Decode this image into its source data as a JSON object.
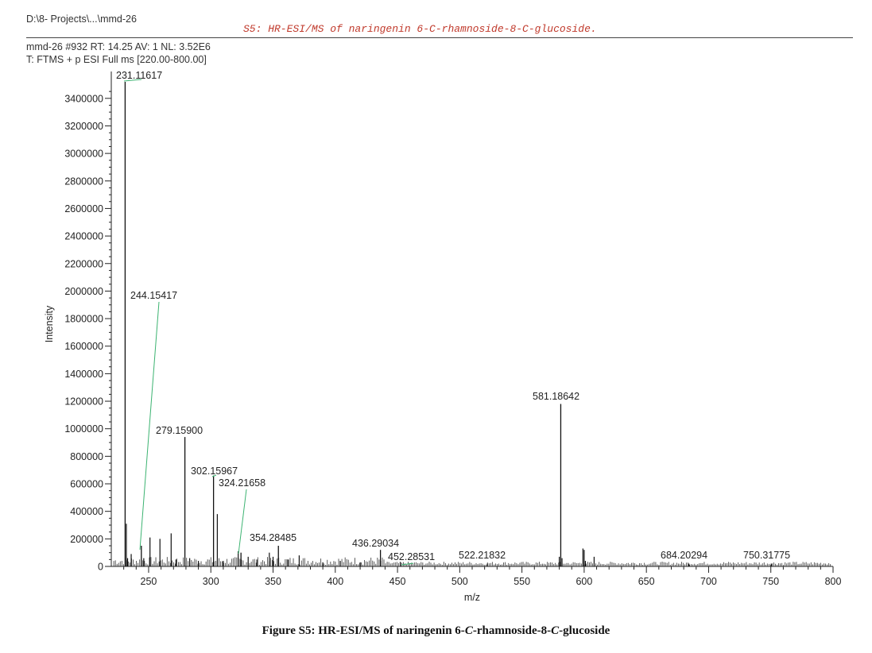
{
  "header": {
    "path": "D:\\8- Projects\\...\\mmd-26",
    "scan_info": "mmd-26 #932  RT: 14.25  AV: 1  NL: 3.52E6",
    "filter_info": "T: FTMS + p ESI Full ms [220.00-800.00]"
  },
  "chart_data": {
    "type": "bar",
    "title": "S5: HR-ESI/MS of naringenin 6-C-rhamnoside-8-C-glucoside.",
    "xlabel": "m/z",
    "ylabel": "Intensity",
    "xlim": [
      220,
      800
    ],
    "ylim": [
      0,
      3520000
    ],
    "x_ticks": [
      250,
      300,
      350,
      400,
      450,
      500,
      550,
      600,
      650,
      700,
      750,
      800
    ],
    "y_ticks": [
      0,
      200000,
      400000,
      600000,
      800000,
      1000000,
      1200000,
      1400000,
      1600000,
      1800000,
      2000000,
      2200000,
      2400000,
      2600000,
      2800000,
      3000000,
      3200000,
      3400000
    ],
    "labeled_peaks": [
      {
        "mz": 231.11617,
        "intensity": 3520000,
        "label": "231.11617"
      },
      {
        "mz": 244.15417,
        "intensity": 150000,
        "label": "244.15417"
      },
      {
        "mz": 279.159,
        "intensity": 940000,
        "label": "279.15900"
      },
      {
        "mz": 302.15967,
        "intensity": 660000,
        "label": "302.15967"
      },
      {
        "mz": 324.21658,
        "intensity": 100000,
        "label": "324.21658"
      },
      {
        "mz": 354.28485,
        "intensity": 150000,
        "label": "354.28485"
      },
      {
        "mz": 436.29034,
        "intensity": 120000,
        "label": "436.29034"
      },
      {
        "mz": 452.28531,
        "intensity": 30000,
        "label": "452.28531"
      },
      {
        "mz": 522.21832,
        "intensity": 20000,
        "label": "522.21832"
      },
      {
        "mz": 581.18642,
        "intensity": 1180000,
        "label": "581.18642"
      },
      {
        "mz": 684.20294,
        "intensity": 20000,
        "label": "684.20294"
      },
      {
        "mz": 750.31775,
        "intensity": 20000,
        "label": "750.31775"
      }
    ],
    "minor_peaks": [
      {
        "mz": 232.1,
        "intensity": 310000
      },
      {
        "mz": 233.1,
        "intensity": 60000
      },
      {
        "mz": 236.0,
        "intensity": 90000
      },
      {
        "mz": 246.1,
        "intensity": 60000
      },
      {
        "mz": 251.1,
        "intensity": 210000
      },
      {
        "mz": 259.1,
        "intensity": 200000
      },
      {
        "mz": 268.1,
        "intensity": 240000
      },
      {
        "mz": 272.0,
        "intensity": 50000
      },
      {
        "mz": 283.0,
        "intensity": 60000
      },
      {
        "mz": 290.0,
        "intensity": 40000
      },
      {
        "mz": 305.2,
        "intensity": 380000
      },
      {
        "mz": 310.0,
        "intensity": 40000
      },
      {
        "mz": 322.0,
        "intensity": 110000
      },
      {
        "mz": 330.0,
        "intensity": 70000
      },
      {
        "mz": 337.0,
        "intensity": 50000
      },
      {
        "mz": 347.0,
        "intensity": 100000
      },
      {
        "mz": 350.0,
        "intensity": 70000
      },
      {
        "mz": 362.0,
        "intensity": 50000
      },
      {
        "mz": 371.0,
        "intensity": 80000
      },
      {
        "mz": 390.0,
        "intensity": 30000
      },
      {
        "mz": 404.0,
        "intensity": 40000
      },
      {
        "mz": 420.0,
        "intensity": 30000
      },
      {
        "mz": 580.0,
        "intensity": 70000
      },
      {
        "mz": 582.2,
        "intensity": 60000
      },
      {
        "mz": 599.0,
        "intensity": 130000
      },
      {
        "mz": 600.0,
        "intensity": 120000
      },
      {
        "mz": 601.0,
        "intensity": 40000
      },
      {
        "mz": 608.0,
        "intensity": 70000
      }
    ]
  },
  "caption": {
    "prefix": "Figure S5: HR-ESI/MS of naringenin 6-",
    "c1": "C",
    "mid": "-rhamnoside-8-",
    "c2": "C",
    "suffix": "-glucoside"
  }
}
